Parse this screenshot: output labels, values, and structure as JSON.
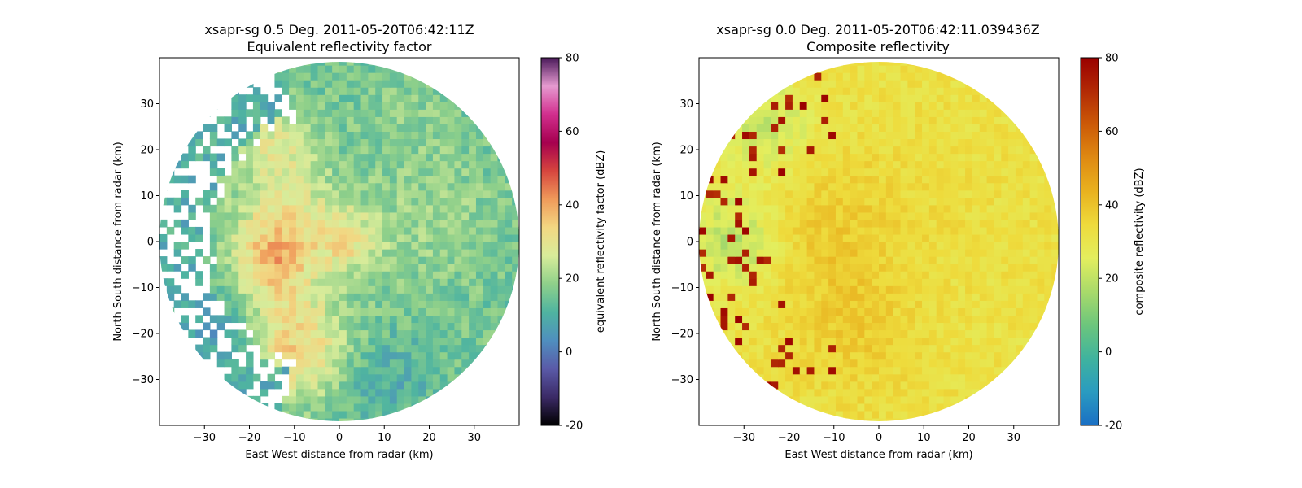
{
  "chart_data": [
    {
      "type": "heatmap",
      "title": "xsapr-sg 0.5 Deg. 2011-05-20T06:42:11Z",
      "subtitle": "Equivalent reflectivity factor",
      "xlabel": "East West distance from radar (km)",
      "ylabel": "North South distance from radar (km)",
      "xlim": [
        -40,
        40
      ],
      "ylim": [
        -40,
        40
      ],
      "xticks": [
        -30,
        -20,
        -10,
        0,
        10,
        20,
        30
      ],
      "yticks": [
        -30,
        -20,
        -10,
        0,
        10,
        20,
        30
      ],
      "range_km": 40,
      "colorbar": {
        "label": "equivalent reflectivity factor (dBZ)",
        "min": -20,
        "max": 80,
        "ticks": [
          -20,
          0,
          20,
          40,
          60,
          80
        ],
        "colors": [
          "#000000",
          "#3b2a66",
          "#5a5aa8",
          "#4f8fbf",
          "#4fb4a0",
          "#8fd08a",
          "#d8ec9a",
          "#f2d782",
          "#f09a5a",
          "#d6453e",
          "#a6004f",
          "#d22f8e",
          "#e69ad0",
          "#4a1a5a"
        ]
      },
      "field_model": {
        "base_dbz": 15,
        "cells": [
          {
            "x": -12,
            "y": 5,
            "r": 12,
            "dbz": 30
          },
          {
            "x": -10,
            "y": -22,
            "r": 12,
            "dbz": 34
          },
          {
            "x": -15,
            "y": -5,
            "r": 8,
            "dbz": 30
          },
          {
            "x": -13,
            "y": 22,
            "r": 8,
            "dbz": 27
          },
          {
            "x": 2,
            "y": 0,
            "r": 7,
            "dbz": 28
          },
          {
            "x": 20,
            "y": 5,
            "r": 15,
            "dbz": 20
          },
          {
            "x": 15,
            "y": 28,
            "r": 10,
            "dbz": 18
          },
          {
            "x": -27,
            "y": -20,
            "r": 9,
            "dbz": 5
          },
          {
            "x": 10,
            "y": -30,
            "r": 10,
            "dbz": 9
          }
        ],
        "sparse_sector_deg": [
          95,
          200
        ]
      }
    },
    {
      "type": "heatmap",
      "title": "xsapr-sg 0.0 Deg. 2011-05-20T06:42:11.039436Z",
      "subtitle": "Composite reflectivity",
      "xlabel": "East West distance from radar (km)",
      "ylabel": "North South distance from radar (km)",
      "xlim": [
        -40,
        40
      ],
      "ylim": [
        -40,
        40
      ],
      "xticks": [
        -30,
        -20,
        -10,
        0,
        10,
        20,
        30
      ],
      "yticks": [
        -30,
        -20,
        -10,
        0,
        10,
        20,
        30
      ],
      "range_km": 40,
      "colorbar": {
        "label": "composite reflectivity (dBZ)",
        "min": -20,
        "max": 80,
        "ticks": [
          -20,
          0,
          20,
          40,
          60,
          80
        ],
        "colors": [
          "#1a6fc4",
          "#2a9bc0",
          "#3fb39e",
          "#6cc67c",
          "#a9da6a",
          "#e3ee5e",
          "#eedb3c",
          "#e9b21f",
          "#df8a12",
          "#cc5a07",
          "#b22a05",
          "#9a0000"
        ]
      },
      "field_model": {
        "base_dbz": 32,
        "cells": [
          {
            "x": -10,
            "y": 2,
            "r": 16,
            "dbz": 38
          },
          {
            "x": -5,
            "y": -20,
            "r": 14,
            "dbz": 37
          },
          {
            "x": 15,
            "y": 10,
            "r": 15,
            "dbz": 33
          },
          {
            "x": -32,
            "y": 0,
            "r": 10,
            "dbz": 18
          },
          {
            "x": -25,
            "y": 25,
            "r": 10,
            "dbz": 20
          }
        ],
        "speckle_sector_deg": [
          100,
          210
        ]
      }
    }
  ]
}
